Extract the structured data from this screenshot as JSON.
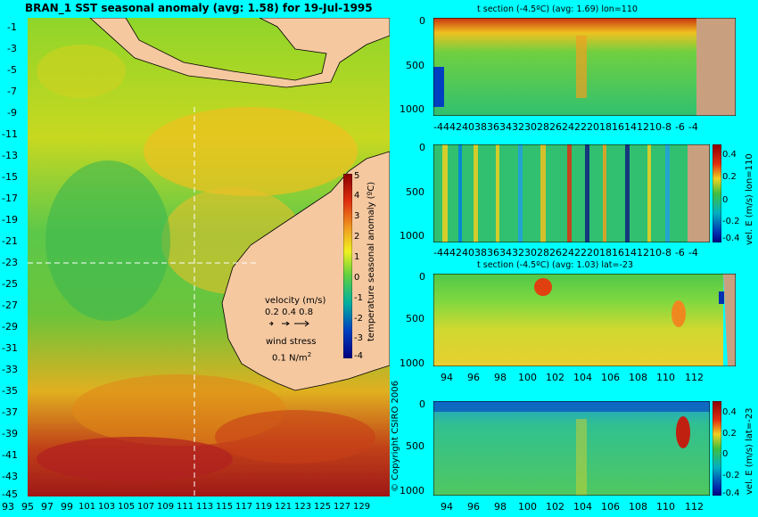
{
  "main_map": {
    "title": "BRAN_1  SST seasonal anomaly  (avg: 1.58)  for 19-Jul-1995",
    "lat_ticks": [
      "-1",
      "-3",
      "-5",
      "-7",
      "-9",
      "-11",
      "-13",
      "-15",
      "-17",
      "-19",
      "-21",
      "-23",
      "-25",
      "-27",
      "-29",
      "-31",
      "-33",
      "-35",
      "-37",
      "-39",
      "-41",
      "-43",
      "-45"
    ],
    "lon_ticks": [
      "93",
      "95",
      "97",
      "99",
      "101",
      "103",
      "105",
      "107",
      "109",
      "111",
      "113",
      "115",
      "117",
      "119",
      "121",
      "123",
      "125",
      "127",
      "129"
    ],
    "colorbar": {
      "label": "temperature seasonal anomaly (ºC)",
      "ticks": [
        "5",
        "4",
        "3",
        "2",
        "1",
        "0",
        "-1",
        "-2",
        "-3",
        "-4"
      ],
      "range": [
        -4,
        5
      ]
    },
    "velocity_legend": {
      "title": "velocity (m/s)",
      "values": "0.2 0.4 0.8"
    },
    "wind_legend": {
      "title": "wind stress",
      "value": "0.1 N/m",
      "unit_sup": "2"
    },
    "copyright": "© Copyright CSIRO 2006"
  },
  "panels": [
    {
      "title": "t section (-4.5ºC) (avg: 1.69) lon=110",
      "x_ticks": [
        "-44",
        "42",
        "40",
        "38",
        "36",
        "34",
        "32",
        "30",
        "28",
        "26",
        "24",
        "22",
        "20",
        "18",
        "16",
        "14",
        "12",
        "10",
        "-8",
        "-6",
        "-4"
      ],
      "y_ticks": [
        "0",
        "500",
        "1000"
      ],
      "colorbar": null
    },
    {
      "title": "",
      "x_ticks": [
        "-44",
        "42",
        "40",
        "38",
        "36",
        "34",
        "32",
        "30",
        "28",
        "26",
        "24",
        "22",
        "20",
        "18",
        "16",
        "14",
        "12",
        "10",
        "-8",
        "-6",
        "-4"
      ],
      "y_ticks": [
        "0",
        "500",
        "1000"
      ],
      "colorbar": {
        "label": "vel. E (m/s) lon=110",
        "ticks": [
          "0.4",
          "0.2",
          "0",
          "-0.2",
          "-0.4"
        ]
      }
    },
    {
      "title": "t section (-4.5ºC) (avg: 1.03) lat=-23",
      "x_ticks": [
        "94",
        "96",
        "98",
        "100",
        "102",
        "104",
        "106",
        "108",
        "110",
        "112"
      ],
      "y_ticks": [
        "0",
        "500",
        "1000"
      ],
      "colorbar": null
    },
    {
      "title": "",
      "x_ticks": [
        "94",
        "96",
        "98",
        "100",
        "102",
        "104",
        "106",
        "108",
        "110",
        "112"
      ],
      "y_ticks": [
        "0",
        "500",
        "1000"
      ],
      "colorbar": {
        "label": "vel. E (m/s) lat=-23",
        "ticks": [
          "0.4",
          "0.2",
          "0",
          "-0.2",
          "-0.4"
        ]
      }
    }
  ],
  "chart_data": [
    {
      "type": "heatmap",
      "title": "BRAN_1  SST seasonal anomaly  (avg: 1.58)  for 19-Jul-1995",
      "x_range": [
        93,
        130
      ],
      "y_range": [
        -45,
        0
      ],
      "value_range": [
        -4,
        5
      ]
    },
    {
      "type": "heatmap",
      "title": "t section (-4.5ºC) (avg: 1.69) lon=110",
      "x_range": [
        -45,
        -3
      ],
      "y_range": [
        0,
        1100
      ]
    },
    {
      "type": "heatmap",
      "title": "",
      "x_range": [
        -45,
        -3
      ],
      "y_range": [
        0,
        1100
      ],
      "value_range": [
        -0.4,
        0.4
      ]
    },
    {
      "type": "heatmap",
      "title": "t section (-4.5ºC) (avg: 1.03) lat=-23",
      "x_range": [
        93,
        114
      ],
      "y_range": [
        0,
        1100
      ]
    },
    {
      "type": "heatmap",
      "title": "",
      "x_range": [
        93,
        114
      ],
      "y_range": [
        0,
        1100
      ],
      "value_range": [
        -0.4,
        0.4
      ]
    }
  ]
}
